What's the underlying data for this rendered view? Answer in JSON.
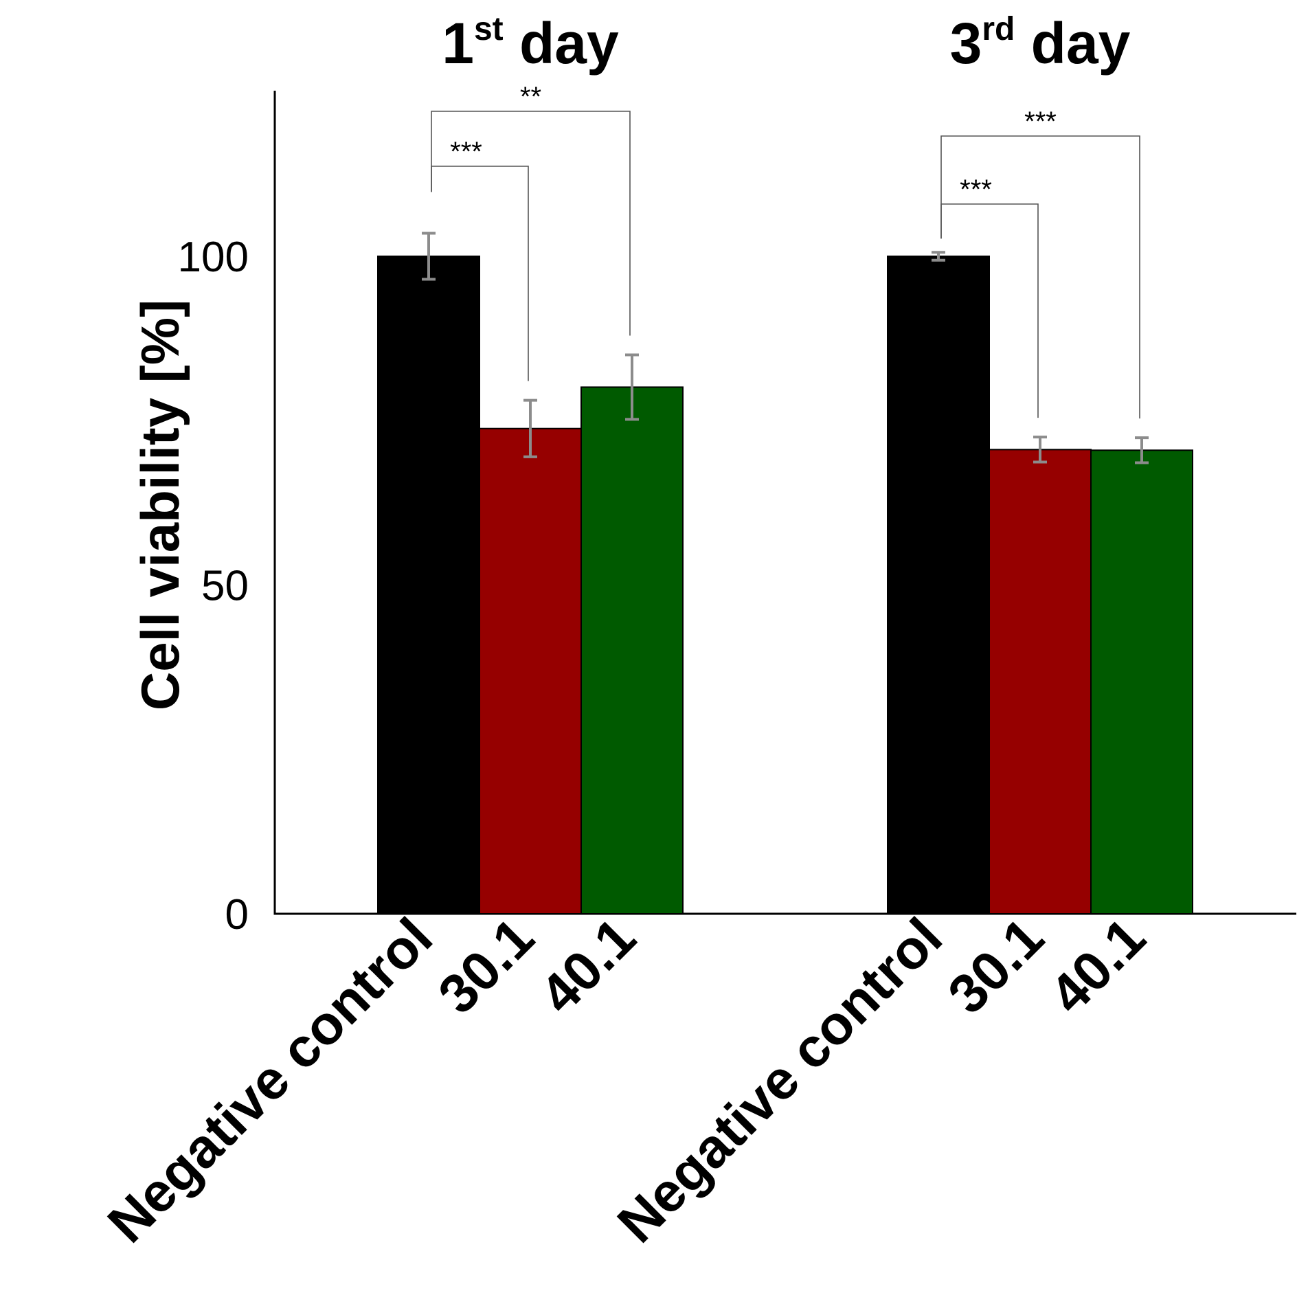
{
  "chart_data": {
    "type": "bar",
    "ylabel": "Cell viability [%]",
    "ylim": [
      0,
      100
    ],
    "yticks": [
      0,
      50,
      100
    ],
    "grid": false,
    "legend": "none",
    "groups": [
      {
        "title_main": "1",
        "title_sup": "st",
        "title_rest": " day",
        "categories": [
          "Negative control",
          "30.1",
          "40.1"
        ],
        "values": [
          100,
          73.8,
          80.1
        ],
        "errors": [
          3.5,
          4.3,
          4.9
        ],
        "colors": [
          "#000000",
          "#960000",
          "#005a00"
        ],
        "significance": [
          {
            "from": 0,
            "to": 1,
            "label": "***"
          },
          {
            "from": 0,
            "to": 2,
            "label": "**"
          }
        ]
      },
      {
        "title_main": "3",
        "title_sup": "rd",
        "title_rest": " day",
        "categories": [
          "Negative control",
          "30.1",
          "40.1"
        ],
        "values": [
          100,
          70.6,
          70.5
        ],
        "errors": [
          0.6,
          1.9,
          1.9
        ],
        "colors": [
          "#000000",
          "#960000",
          "#005a00"
        ],
        "significance": [
          {
            "from": 0,
            "to": 1,
            "label": "***"
          },
          {
            "from": 0,
            "to": 2,
            "label": "***"
          }
        ]
      }
    ],
    "error_bar_color": "#8c8c8c"
  }
}
